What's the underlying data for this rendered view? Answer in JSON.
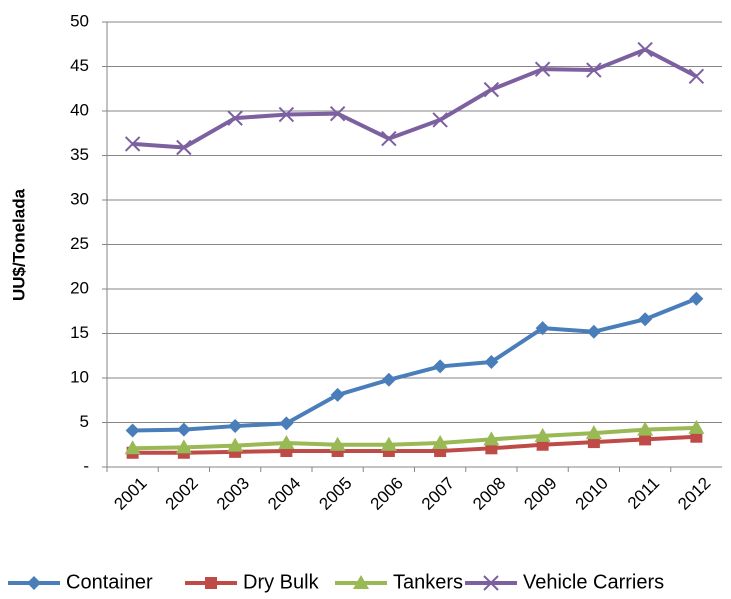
{
  "chart_data": {
    "type": "line",
    "y_label": "UU$/Tonelada",
    "categories": [
      "2001",
      "2002",
      "2003",
      "2004",
      "2005",
      "2006",
      "2007",
      "2008",
      "2009",
      "2010",
      "2011",
      "2012"
    ],
    "series": [
      {
        "name": "Container",
        "color": "#4a7ebb",
        "marker": "diamond",
        "values": [
          4.1,
          4.2,
          4.6,
          4.9,
          8.1,
          9.8,
          11.3,
          11.8,
          15.6,
          15.2,
          16.6,
          18.9
        ]
      },
      {
        "name": "Dry Bulk",
        "color": "#be4b48",
        "marker": "square",
        "values": [
          1.6,
          1.6,
          1.7,
          1.8,
          1.8,
          1.8,
          1.8,
          2.1,
          2.5,
          2.8,
          3.1,
          3.4
        ]
      },
      {
        "name": "Tankers",
        "color": "#98b954",
        "marker": "triangle",
        "values": [
          2.1,
          2.2,
          2.4,
          2.7,
          2.5,
          2.5,
          2.7,
          3.1,
          3.5,
          3.8,
          4.2,
          4.4
        ]
      },
      {
        "name": "Vehicle Carriers",
        "color": "#7d60a0",
        "marker": "x",
        "values": [
          36.3,
          35.9,
          39.2,
          39.6,
          39.7,
          36.9,
          39.0,
          42.4,
          44.7,
          44.6,
          46.9,
          43.9
        ]
      }
    ],
    "ylim": [
      0,
      50
    ],
    "yticks": [
      {
        "value": 0,
        "label": "-"
      },
      5,
      10,
      15,
      20,
      25,
      30,
      35,
      40,
      45,
      50
    ],
    "grid": true,
    "legend": "bottom"
  }
}
